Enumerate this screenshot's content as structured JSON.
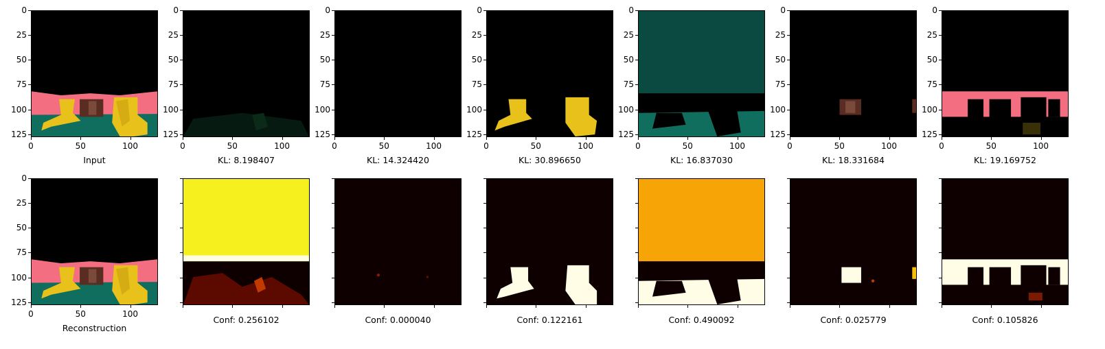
{
  "figure": {
    "top_row": {
      "panels": [
        {
          "name": "input",
          "caption": "Input",
          "kind": "input"
        },
        {
          "name": "component-1",
          "caption": "KL: 8.198407",
          "kind": "dark_green"
        },
        {
          "name": "component-2",
          "caption": "KL: 14.324420",
          "kind": "black"
        },
        {
          "name": "component-3",
          "caption": "KL: 30.896650",
          "kind": "yellow_blobs"
        },
        {
          "name": "component-4",
          "caption": "KL: 16.837030",
          "kind": "teal"
        },
        {
          "name": "component-5",
          "caption": "KL: 18.331684",
          "kind": "brown_block"
        },
        {
          "name": "component-6",
          "caption": "KL: 19.169752",
          "kind": "pink_band"
        }
      ]
    },
    "bottom_row": {
      "panels": [
        {
          "name": "reconstruction",
          "caption": "Reconstruction",
          "kind": "input"
        },
        {
          "name": "conf-1",
          "caption": "Conf: 0.256102",
          "kind": "heat_yellow_top"
        },
        {
          "name": "conf-2",
          "caption": "Conf: 0.000040",
          "kind": "heat_dark"
        },
        {
          "name": "conf-3",
          "caption": "Conf: 0.122161",
          "kind": "heat_blobs"
        },
        {
          "name": "conf-4",
          "caption": "Conf: 0.490092",
          "kind": "heat_orange_top"
        },
        {
          "name": "conf-5",
          "caption": "Conf: 0.025779",
          "kind": "heat_block"
        },
        {
          "name": "conf-6",
          "caption": "Conf: 0.105826",
          "kind": "heat_band"
        }
      ]
    },
    "axis": {
      "y_ticks": [
        "0",
        "25",
        "50",
        "75",
        "100",
        "125"
      ],
      "x_ticks": [
        "0",
        "50",
        "100"
      ],
      "y_tick_values": [
        0,
        25,
        50,
        75,
        100,
        125
      ],
      "x_tick_values": [
        0,
        50,
        100
      ],
      "image_size": 128
    }
  }
}
